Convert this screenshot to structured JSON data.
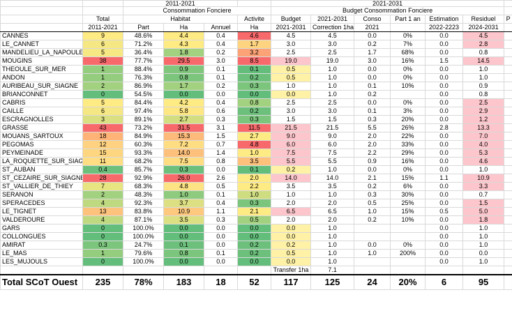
{
  "groups": {
    "g2011": "2011-2021",
    "g2021": "2021-2031"
  },
  "subgroups": {
    "conso": "Consommation Fonciere",
    "budget": "Budget Consommation Fonciere"
  },
  "headers": {
    "total": "Total",
    "habitat": "Habitat",
    "activite": "Activite",
    "budget": "Budget",
    "col2021": "2021-2031",
    "conso": "Conso",
    "part1an": "Part 1 an",
    "estimation": "Estimation",
    "residuel": "Residuel",
    "overflow": "P"
  },
  "subheaders": {
    "total": "2011-2021",
    "part": "Part",
    "ha": "Ha",
    "annuel": "Annuel",
    "ha2": "Ha",
    "budget": "2021-2031",
    "correction": "Correction 1ha",
    "conso": "2021",
    "estimation": "2022-2223",
    "residuel": "2024-2031"
  },
  "rows": [
    {
      "name": "CANNES",
      "total": "9",
      "part": "48.6%",
      "ha": "4.4",
      "annuel": "0.4",
      "act": "4.6",
      "budget": "4.5",
      "corr": "4.5",
      "conso": "0.0",
      "part1": "0%",
      "est": "0.0",
      "resid": "4.5"
    },
    {
      "name": "LE_CANNET",
      "total": "6",
      "part": "71.2%",
      "ha": "4.3",
      "annuel": "0.4",
      "act": "1.7",
      "budget": "3.0",
      "corr": "3.0",
      "conso": "0.2",
      "part1": "7%",
      "est": "0.0",
      "resid": "2.8"
    },
    {
      "name": "MANDELIEU_LA_NAPOULE",
      "total": "5",
      "part": "36.4%",
      "ha": "1.8",
      "annuel": "0.2",
      "act": "3.2",
      "budget": "2.5",
      "corr": "2.5",
      "conso": "1.7",
      "part1": "68%",
      "est": "0.0",
      "resid": "0.8"
    },
    {
      "name": "MOUGINS",
      "total": "38",
      "part": "77.7%",
      "ha": "29.5",
      "annuel": "3.0",
      "act": "8.5",
      "budget": "19.0",
      "corr": "19.0",
      "conso": "3.0",
      "part1": "16%",
      "est": "1.5",
      "resid": "14.5"
    },
    {
      "name": "THEOULE_SUR_MER",
      "total": "1",
      "part": "88.4%",
      "ha": "0.9",
      "annuel": "0.1",
      "act": "0.1",
      "budget": "0.5",
      "corr": "1.0",
      "conso": "0.0",
      "part1": "0%",
      "est": "0.0",
      "resid": "1.0"
    },
    {
      "name": "ANDON",
      "total": "1",
      "part": "76.3%",
      "ha": "0.8",
      "annuel": "0.1",
      "act": "0.2",
      "budget": "0.5",
      "corr": "1.0",
      "conso": "0.0",
      "part1": "0%",
      "est": "0.0",
      "resid": "1.0"
    },
    {
      "name": "AURIBEAU_SUR_SIAGNE",
      "total": "2",
      "part": "86.9%",
      "ha": "1.7",
      "annuel": "0.2",
      "act": "0.3",
      "budget": "1.0",
      "corr": "1.0",
      "conso": "0.1",
      "part1": "10%",
      "est": "0.0",
      "resid": "0.9"
    },
    {
      "name": "BRIANCONNET",
      "total": "0",
      "part": "54.5%",
      "ha": "0.0",
      "annuel": "0.0",
      "act": "0.0",
      "budget": "0.0",
      "corr": "1.0",
      "conso": "0.2",
      "part1": "",
      "est": "0.0",
      "resid": "0.8"
    },
    {
      "name": "CABRIS",
      "total": "5",
      "part": "84.4%",
      "ha": "4.2",
      "annuel": "0.4",
      "act": "0.8",
      "budget": "2.5",
      "corr": "2.5",
      "conso": "0.0",
      "part1": "0%",
      "est": "0.0",
      "resid": "2.5"
    },
    {
      "name": "CAILLE",
      "total": "6",
      "part": "97.4%",
      "ha": "5.8",
      "annuel": "0.6",
      "act": "0.2",
      "budget": "3.0",
      "corr": "3.0",
      "conso": "0.1",
      "part1": "3%",
      "est": "0.0",
      "resid": "2.9"
    },
    {
      "name": "ESCRAGNOLLES",
      "total": "3",
      "part": "89.1%",
      "ha": "2.7",
      "annuel": "0.3",
      "act": "0.3",
      "budget": "1.5",
      "corr": "1.5",
      "conso": "0.3",
      "part1": "20%",
      "est": "0.0",
      "resid": "1.2"
    },
    {
      "name": "GRASSE",
      "total": "43",
      "part": "73.2%",
      "ha": "31.5",
      "annuel": "3.1",
      "act": "11.5",
      "budget": "21.5",
      "corr": "21.5",
      "conso": "5.5",
      "part1": "26%",
      "est": "2.8",
      "resid": "13.3"
    },
    {
      "name": "MOUANS_SARTOUX",
      "total": "18",
      "part": "84.9%",
      "ha": "15.3",
      "annuel": "1.5",
      "act": "2.7",
      "budget": "9.0",
      "corr": "9.0",
      "conso": "2.0",
      "part1": "22%",
      "est": "0.0",
      "resid": "7.0"
    },
    {
      "name": "PEGOMAS",
      "total": "12",
      "part": "60.3%",
      "ha": "7.2",
      "annuel": "0.7",
      "act": "4.8",
      "budget": "6.0",
      "corr": "6.0",
      "conso": "2.0",
      "part1": "33%",
      "est": "0.0",
      "resid": "4.0"
    },
    {
      "name": "PEYMEINADE",
      "total": "15",
      "part": "93.3%",
      "ha": "14.0",
      "annuel": "1.4",
      "act": "1.0",
      "budget": "7.5",
      "corr": "7.5",
      "conso": "2.2",
      "part1": "29%",
      "est": "0.0",
      "resid": "5.3"
    },
    {
      "name": "LA_ROQUETTE_SUR_SIAGNE",
      "total": "11",
      "part": "68.2%",
      "ha": "7.5",
      "annuel": "0.8",
      "act": "3.5",
      "budget": "5.5",
      "corr": "5.5",
      "conso": "0.9",
      "part1": "16%",
      "est": "0.0",
      "resid": "4.6"
    },
    {
      "name": "ST_AUBAN",
      "total": "0.4",
      "part": "85.7%",
      "ha": "0.3",
      "annuel": "0.0",
      "act": "0.1",
      "budget": "0.2",
      "corr": "1.0",
      "conso": "0.0",
      "part1": "0%",
      "est": "0.0",
      "resid": "1.0"
    },
    {
      "name": "ST_CEZAIRE_SUR_SIAGNE",
      "total": "28",
      "part": "92.9%",
      "ha": "26.0",
      "annuel": "2.6",
      "act": "2.0",
      "budget": "14.0",
      "corr": "14.0",
      "conso": "2.1",
      "part1": "15%",
      "est": "1.1",
      "resid": "10.9"
    },
    {
      "name": "ST_VALLIER_DE_THIEY",
      "total": "7",
      "part": "68.3%",
      "ha": "4.8",
      "annuel": "0.5",
      "act": "2.2",
      "budget": "3.5",
      "corr": "3.5",
      "conso": "0.2",
      "part1": "6%",
      "est": "0.0",
      "resid": "3.3"
    },
    {
      "name": "SERANON",
      "total": "2",
      "part": "48.3%",
      "ha": "1.0",
      "annuel": "0.1",
      "act": "1.0",
      "budget": "1.0",
      "corr": "1.0",
      "conso": "0.3",
      "part1": "30%",
      "est": "0.0",
      "resid": "0.7"
    },
    {
      "name": "SPERACEDES",
      "total": "4",
      "part": "92.3%",
      "ha": "3.7",
      "annuel": "0.4",
      "act": "0.3",
      "budget": "2.0",
      "corr": "2.0",
      "conso": "0.5",
      "part1": "25%",
      "est": "0.0",
      "resid": "1.5"
    },
    {
      "name": "LE_TIGNET",
      "total": "13",
      "part": "83.8%",
      "ha": "10.9",
      "annuel": "1.1",
      "act": "2.1",
      "budget": "6.5",
      "corr": "6.5",
      "conso": "1.0",
      "part1": "15%",
      "est": "0.5",
      "resid": "5.0"
    },
    {
      "name": "VALDEROURE",
      "total": "4",
      "part": "87.1%",
      "ha": "3.5",
      "annuel": "0.3",
      "act": "0.5",
      "budget": "2.0",
      "corr": "2.0",
      "conso": "0.2",
      "part1": "10%",
      "est": "0.0",
      "resid": "1.8"
    },
    {
      "name": "GARS",
      "total": "0",
      "part": "100.0%",
      "ha": "0.0",
      "annuel": "0.0",
      "act": "0.0",
      "budget": "0.0",
      "corr": "1.0",
      "conso": "",
      "part1": "",
      "est": "0.0",
      "resid": "1.0"
    },
    {
      "name": "COLLONGUES",
      "total": "0",
      "part": "100.0%",
      "ha": "0.0",
      "annuel": "0.0",
      "act": "0.0",
      "budget": "0.0",
      "corr": "1.0",
      "conso": "",
      "part1": "",
      "est": "0.0",
      "resid": "1.0"
    },
    {
      "name": "AMIRAT",
      "total": "0.3",
      "part": "24.7%",
      "ha": "0.1",
      "annuel": "0.0",
      "act": "0.2",
      "budget": "0.2",
      "corr": "1.0",
      "conso": "0.0",
      "part1": "0%",
      "est": "0.0",
      "resid": "1.0"
    },
    {
      "name": "LE_MAS",
      "total": "1",
      "part": "79.6%",
      "ha": "0.8",
      "annuel": "0.1",
      "act": "0.2",
      "budget": "0.5",
      "corr": "1.0",
      "conso": "1.0",
      "part1": "200%",
      "est": "0.0",
      "resid": "0.0"
    },
    {
      "name": "LES_MUJOULS",
      "total": "0",
      "part": "100.0%",
      "ha": "0.0",
      "annuel": "0.0",
      "act": "0.0",
      "budget": "0.0",
      "corr": "1.0",
      "conso": "",
      "part1": "",
      "est": "0.0",
      "resid": "1.0"
    }
  ],
  "transfer": {
    "label": "Transfer 1ha",
    "value": "7.1"
  },
  "totals": {
    "name": "Total SCoT Ouest",
    "total": "235",
    "part": "78%",
    "ha": "183",
    "annuel": "18",
    "act": "52",
    "budget": "117",
    "corr": "125",
    "conso": "24",
    "part1": "20%",
    "est": "6",
    "resid": "95"
  },
  "colors": {
    "total": [
      "#ffeb84",
      "#f5e783",
      "#f6e883",
      "#f8696b",
      "#94cd7e",
      "#94cd7e",
      "#a2d17f",
      "#63be7b",
      "#ffeb84",
      "#f5e783",
      "#dae081",
      "#f8696b",
      "#ffb376",
      "#fed280",
      "#fed680",
      "#ffdd82",
      "#6dc07c",
      "#f8696b",
      "#e7e482",
      "#a2d17f",
      "#bfd980",
      "#fdc27c",
      "#bfd980",
      "#63be7b",
      "#63be7b",
      "#7cc57d",
      "#94cd7e",
      "#63be7b"
    ],
    "ha": [
      "#ffeb84",
      "#ffeb84",
      "#a2d17f",
      "#f8696b",
      "#80c67d",
      "#7cc57d",
      "#a2d17f",
      "#63be7b",
      "#ffeb84",
      "#ffe783",
      "#d3de81",
      "#f8696b",
      "#fdba7a",
      "#ffdd82",
      "#fec17c",
      "#ffdd82",
      "#6dc07c",
      "#f8696b",
      "#fde383",
      "#8ecb7e",
      "#dde082",
      "#fec97e",
      "#dde082",
      "#63be7b",
      "#63be7b",
      "#6dc07c",
      "#7cc57d",
      "#63be7b"
    ],
    "act": [
      "#f8696b",
      "#ffd480",
      "#fba276",
      "#f8696b",
      "#63be7b",
      "#6dc07c",
      "#7cc57d",
      "#63be7b",
      "#a2d17f",
      "#6dc07c",
      "#7cc57d",
      "#f8696b",
      "#ffeb84",
      "#f8696b",
      "#ffeb84",
      "#fec17c",
      "#63be7b",
      "#ffeb84",
      "#ffeb84",
      "#cfdd81",
      "#7cc57d",
      "#ffeb84",
      "#a2d17f",
      "#63be7b",
      "#63be7b",
      "#6dc07c",
      "#6dc07c",
      "#63be7b"
    ],
    "budget": [
      "#ffffff",
      "#ffffff",
      "#ffffff",
      "#fcc6cc",
      "#fff2a6",
      "#fff2a6",
      "#ffffff",
      "#fff2a6",
      "#ffffff",
      "#ffffff",
      "#ffffff",
      "#fcc6cc",
      "#fcc6cc",
      "#fcc6cc",
      "#fcc6cc",
      "#fcc6cc",
      "#fff2a6",
      "#fcc6cc",
      "#ffffff",
      "#ffffff",
      "#ffffff",
      "#fcc6cc",
      "#ffffff",
      "#fff2a6",
      "#fff2a6",
      "#fff2a6",
      "#fff2a6",
      "#fff2a6"
    ],
    "resid": [
      "#fcc6cc",
      "#fcc6cc",
      "#ffffff",
      "#fcc6cc",
      "#ffffff",
      "#ffffff",
      "#ffffff",
      "#ffffff",
      "#fcc6cc",
      "#fcc6cc",
      "#fcc6cc",
      "#fcc6cc",
      "#fcc6cc",
      "#fcc6cc",
      "#fcc6cc",
      "#fcc6cc",
      "#ffffff",
      "#fcc6cc",
      "#fcc6cc",
      "#ffffff",
      "#fcc6cc",
      "#fcc6cc",
      "#fcc6cc",
      "#ffffff",
      "#ffffff",
      "#ffffff",
      "#ffffff",
      "#ffffff"
    ]
  }
}
